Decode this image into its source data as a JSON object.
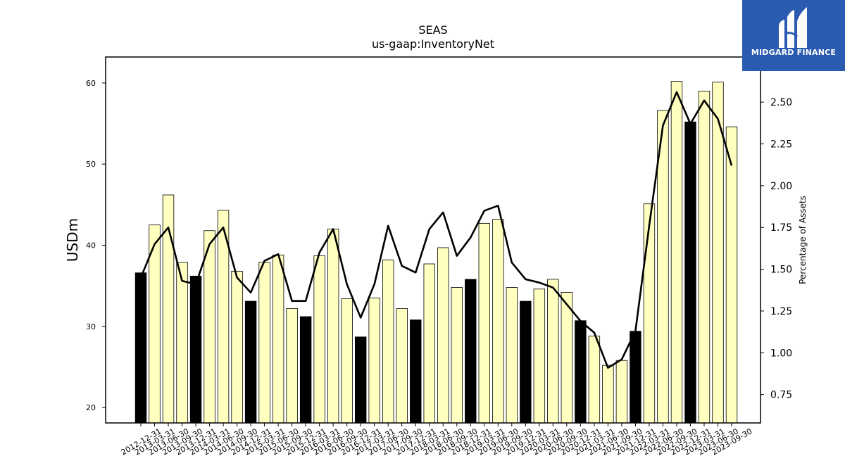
{
  "logo": {
    "brand": "MIDGARD FINANCE",
    "icon": "midgard-m-icon"
  },
  "chart_data": {
    "type": "bar",
    "title": "SEAS",
    "subtitle": "us-gaap:InventoryNet",
    "ylabel": "USDm",
    "y2label": "Percentage of Assets",
    "ylim": [
      18.1,
      63.2
    ],
    "y2lim": [
      0.58,
      2.77
    ],
    "yticks": [
      20,
      30,
      40,
      50,
      60
    ],
    "y2ticks": [
      "0.75",
      "1.00",
      "1.25",
      "1.50",
      "1.75",
      "2.00",
      "2.25",
      "2.50"
    ],
    "colors": {
      "q4_bar": "#000000",
      "bar": "#ffffc0",
      "line": "#000000"
    },
    "categories": [
      "2012-12-31",
      "2013-03-31",
      "2013-06-30",
      "2013-09-30",
      "2013-12-31",
      "2014-03-31",
      "2014-06-30",
      "2014-09-30",
      "2014-12-31",
      "2015-03-31",
      "2015-06-30",
      "2015-09-30",
      "2015-12-31",
      "2016-03-31",
      "2016-06-30",
      "2016-09-30",
      "2016-12-31",
      "2017-03-31",
      "2017-06-30",
      "2017-09-30",
      "2017-12-31",
      "2018-03-31",
      "2018-06-30",
      "2018-09-30",
      "2018-12-31",
      "2019-03-31",
      "2019-06-30",
      "2019-09-30",
      "2019-12-31",
      "2020-03-31",
      "2020-06-30",
      "2020-09-30",
      "2020-12-31",
      "2021-03-31",
      "2021-06-30",
      "2021-09-30",
      "2021-12-31",
      "2022-03-31",
      "2022-06-30",
      "2022-09-30",
      "2022-12-31",
      "2023-03-31",
      "2023-06-30",
      "2023-09-30"
    ],
    "series": [
      {
        "values": [
          36.6,
          42.5,
          46.2,
          37.9,
          36.2,
          41.8,
          44.3,
          36.8,
          33.1,
          37.9,
          38.8,
          32.2,
          31.2,
          38.7,
          42.0,
          33.4,
          28.7,
          33.5,
          38.2,
          32.2,
          30.8,
          37.7,
          39.7,
          34.8,
          35.8,
          42.7,
          43.2,
          34.8,
          33.1,
          34.6,
          35.8,
          34.2,
          30.7,
          28.8,
          25.2,
          25.8,
          29.4,
          45.1,
          56.6,
          60.2,
          55.2,
          59.0,
          60.1,
          54.6
        ]
      },
      {
        "axis": "right",
        "values": [
          1.45,
          1.65,
          1.75,
          1.43,
          1.41,
          1.65,
          1.75,
          1.45,
          1.36,
          1.55,
          1.59,
          1.31,
          1.31,
          1.6,
          1.74,
          1.41,
          1.21,
          1.41,
          1.76,
          1.52,
          1.48,
          1.74,
          1.84,
          1.58,
          1.69,
          1.85,
          1.88,
          1.54,
          1.44,
          1.42,
          1.39,
          1.29,
          1.19,
          1.12,
          0.91,
          0.96,
          1.13,
          1.76,
          2.36,
          2.56,
          2.37,
          2.51,
          2.4,
          2.12
        ]
      }
    ]
  }
}
